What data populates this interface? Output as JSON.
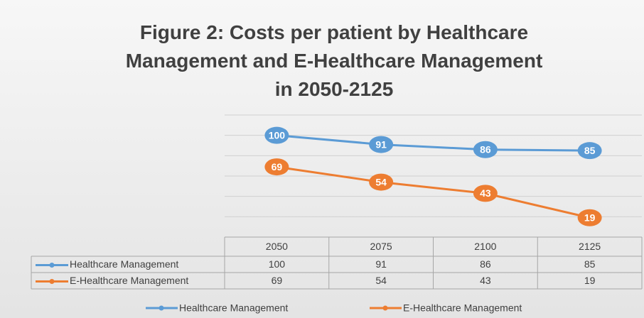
{
  "chart_data": {
    "type": "line",
    "title": "Figure 2: Costs per patient by Healthcare Management and E-Healthcare Management in 2050-2125",
    "categories": [
      "2050",
      "2075",
      "2100",
      "2125"
    ],
    "series": [
      {
        "name": "Healthcare Management",
        "color": "#5b9bd5",
        "values": [
          100,
          91,
          86,
          85
        ]
      },
      {
        "name": "E-Healthcare Management",
        "color": "#ed7d31",
        "values": [
          69,
          54,
          43,
          19
        ]
      }
    ],
    "ylim": [
      0,
      120
    ],
    "yticks": [
      0,
      20,
      40,
      60,
      80,
      100,
      120
    ],
    "grid": true,
    "data_labels": true,
    "data_table": true,
    "legend": "bottom"
  }
}
